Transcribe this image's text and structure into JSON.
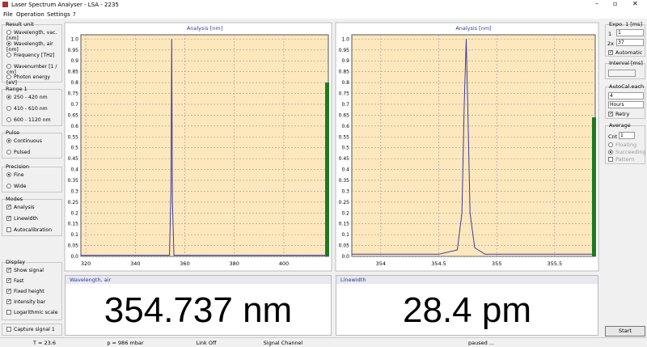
{
  "window": {
    "title": "Laser Spectrum Analyser - LSA - 2235"
  },
  "menu": [
    "File",
    "Operation",
    "Settings",
    "?"
  ],
  "left_panel": {
    "result_unit": {
      "title": "Result unit",
      "options": [
        "Wavelength, vac. [nm]",
        "Wavelength, air [nm]",
        "Frequency [THz]",
        "Wavenumber [1 / cm]",
        "Photon energy [eV]"
      ]
    },
    "range": {
      "title": "Range 1",
      "options": [
        "250 - 420 nm",
        "410 - 610 nm",
        "600 - 1120 nm"
      ]
    },
    "pulse": {
      "title": "Pulse",
      "options": [
        "Continuous",
        "Pulsed"
      ]
    },
    "precision": {
      "title": "Precision",
      "options": [
        "Fine",
        "Wide"
      ]
    },
    "modes": {
      "title": "Modes",
      "options": [
        "Analysis",
        "Linewidth",
        "Autocalibration"
      ]
    },
    "display": {
      "title": "Display",
      "options": [
        "Show signal",
        "Fast",
        "Fixed height",
        "Intensity bar",
        "Logarithmic scale"
      ]
    },
    "capture": "Capture signal 1"
  },
  "right_panel": {
    "expo": {
      "title": "Expo. 1 [ms]",
      "row1_label": "1",
      "row1_value": "1",
      "row2_label": "2x",
      "row2_value": "37",
      "automatic": "Automatic"
    },
    "interval": {
      "title": "Interval [ms]"
    },
    "autocal": {
      "title": "AutoCal.each",
      "value": "4",
      "unit": "Hours",
      "retry": "Retry"
    },
    "average": {
      "title": "Average",
      "cnt_label": "Cnt",
      "cnt_value": "1",
      "options": [
        "Floating",
        "Succeeding",
        "Pattern"
      ]
    },
    "start": "Start"
  },
  "results": {
    "wavelength_label": "Wavelength, air",
    "wavelength": "354.737 nm",
    "linewidth_label": "Linewidth",
    "linewidth": "28.4 pm"
  },
  "status": [
    "T = 23.6",
    "p = 986 mbar",
    "Link Off",
    "Signal Channel",
    "paused ..."
  ],
  "chart_data": [
    {
      "type": "line",
      "title": "Analysis [nm]",
      "color": "#3b3b9e",
      "bar_color": "#1e7a1e",
      "grid": true,
      "x": [
        318,
        353.8,
        354.4,
        354.7,
        355.0,
        355.6,
        418
      ],
      "values": [
        0.005,
        0.005,
        0.3,
        1.0,
        0.25,
        0.005,
        0.005
      ],
      "xlim": [
        318,
        418
      ],
      "xticks": [
        320,
        340,
        360,
        380,
        400
      ],
      "ylim": [
        0,
        1.02
      ],
      "yticks": [
        {
          "value": 0,
          "label": "0.0"
        },
        0.05,
        0.1,
        0.15,
        0.2,
        0.25,
        0.3,
        0.35,
        0.4,
        0.45,
        0.5,
        0.55,
        0.6,
        0.65,
        0.7,
        0.75,
        0.8,
        0.85,
        0.9,
        0.95,
        {
          "value": 1,
          "label": "1.0"
        }
      ],
      "intensity": 0.8
    },
    {
      "type": "line",
      "title": "Analysis [nm]",
      "color": "#3b3b9e",
      "bar_color": "#1e7a1e",
      "grid": true,
      "x": [
        353.75,
        354.5,
        354.66,
        354.7,
        354.72,
        354.737,
        354.75,
        354.77,
        354.81,
        354.9,
        355.85
      ],
      "values": [
        0.01,
        0.01,
        0.03,
        0.2,
        0.7,
        1.0,
        0.7,
        0.2,
        0.04,
        0.01,
        0.01
      ],
      "xlim": [
        353.75,
        355.85
      ],
      "xticks": [
        354,
        354.5,
        355,
        355.5
      ],
      "ylim": [
        0,
        1.02
      ],
      "yticks": [
        {
          "value": 0,
          "label": "0.0"
        },
        0.05,
        0.1,
        0.15,
        0.2,
        0.25,
        0.3,
        0.35,
        0.4,
        0.45,
        0.5,
        0.55,
        0.6,
        0.65,
        0.7,
        0.75,
        0.8,
        0.85,
        0.9,
        0.95,
        {
          "value": 1,
          "label": "1.0"
        }
      ],
      "intensity": 0.64
    }
  ]
}
